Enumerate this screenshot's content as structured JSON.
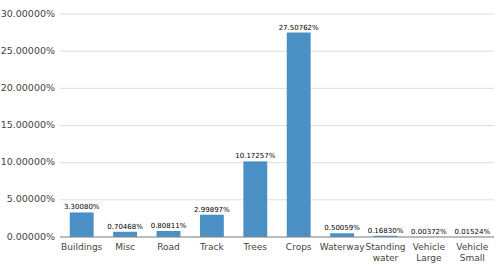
{
  "chart_data": {
    "type": "bar",
    "categories": [
      "Buildings",
      "Misc",
      "Road",
      "Track",
      "Trees",
      "Crops",
      "Waterway",
      "Standing\nwater",
      "Vehicle\nLarge",
      "Vehicle\nSmall"
    ],
    "values": [
      3.3008,
      0.70468,
      0.80811,
      2.99897,
      10.17257,
      27.50762,
      0.50059,
      0.1683,
      0.00372,
      0.01524
    ],
    "value_labels": [
      "3.30080%",
      "0.70468%",
      "0.80811%",
      "2.99897%",
      "10.17257%",
      "27.50762%",
      "0.50059%",
      "0.16830%",
      "0.00372%",
      "0.01524%"
    ],
    "color": "#4A90C4",
    "ylim": [
      0,
      30
    ],
    "yticks": [
      {
        "value": 0,
        "label": "0.00000%"
      },
      {
        "value": 5,
        "label": "5.00000%"
      },
      {
        "value": 10,
        "label": "10.00000%"
      },
      {
        "value": 15,
        "label": "15.00000%"
      },
      {
        "value": 20,
        "label": "20.00000%"
      },
      {
        "value": 25,
        "label": "25.00000%"
      },
      {
        "value": 30,
        "label": "30.00000%"
      }
    ],
    "grid": true,
    "data_labels": true
  }
}
